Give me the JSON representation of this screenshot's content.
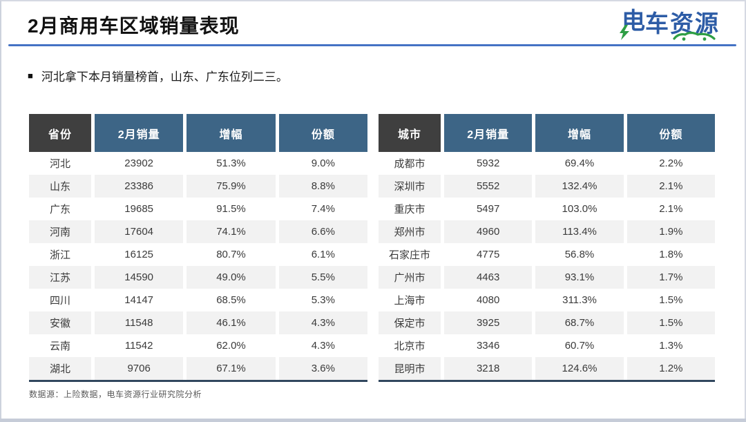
{
  "slide": {
    "title": "2月商用车区域销量表现",
    "bullet_marker": "■",
    "bullet": "河北拿下本月销量榜首，山东、广东位列二三。",
    "source_note": "数据源：上险数据，电车资源行业研究院分析"
  },
  "logo": {
    "char1": "电",
    "rest": "车资源",
    "full_text": "电车资源",
    "brand_blue": "#2d5ca6",
    "brand_green": "#2e9e44",
    "bolt_icon": "lightning-bolt",
    "car_icon": "car-silhouette"
  },
  "colors": {
    "accent_line": "#4472c4",
    "header_first_col_bg": "#3f3f3f",
    "header_bg": "#3d6586",
    "row_alt_bg": "#f2f2f2",
    "table_bottom_border": "#31475e"
  },
  "chart_data": [
    {
      "type": "table",
      "title": "省份销量表",
      "headers": [
        "省份",
        "2月销量",
        "增幅",
        "份额"
      ],
      "rows": [
        [
          "河北",
          "23902",
          "51.3%",
          "9.0%"
        ],
        [
          "山东",
          "23386",
          "75.9%",
          "8.8%"
        ],
        [
          "广东",
          "19685",
          "91.5%",
          "7.4%"
        ],
        [
          "河南",
          "17604",
          "74.1%",
          "6.6%"
        ],
        [
          "浙江",
          "16125",
          "80.7%",
          "6.1%"
        ],
        [
          "江苏",
          "14590",
          "49.0%",
          "5.5%"
        ],
        [
          "四川",
          "14147",
          "68.5%",
          "5.3%"
        ],
        [
          "安徽",
          "11548",
          "46.1%",
          "4.3%"
        ],
        [
          "云南",
          "11542",
          "62.0%",
          "4.3%"
        ],
        [
          "湖北",
          "9706",
          "67.1%",
          "3.6%"
        ]
      ]
    },
    {
      "type": "table",
      "title": "城市销量表",
      "headers": [
        "城市",
        "2月销量",
        "增幅",
        "份额"
      ],
      "rows": [
        [
          "成都市",
          "5932",
          "69.4%",
          "2.2%"
        ],
        [
          "深圳市",
          "5552",
          "132.4%",
          "2.1%"
        ],
        [
          "重庆市",
          "5497",
          "103.0%",
          "2.1%"
        ],
        [
          "郑州市",
          "4960",
          "113.4%",
          "1.9%"
        ],
        [
          "石家庄市",
          "4775",
          "56.8%",
          "1.8%"
        ],
        [
          "广州市",
          "4463",
          "93.1%",
          "1.7%"
        ],
        [
          "上海市",
          "4080",
          "311.3%",
          "1.5%"
        ],
        [
          "保定市",
          "3925",
          "68.7%",
          "1.5%"
        ],
        [
          "北京市",
          "3346",
          "60.7%",
          "1.3%"
        ],
        [
          "昆明市",
          "3218",
          "124.6%",
          "1.2%"
        ]
      ]
    }
  ]
}
